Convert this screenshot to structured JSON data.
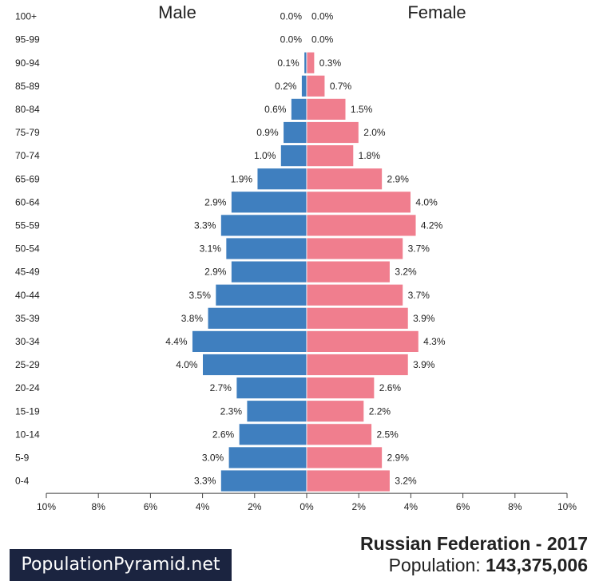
{
  "chart_data": {
    "type": "bar",
    "orientation": "horizontal-pyramid",
    "categories": [
      "100+",
      "95-99",
      "90-94",
      "85-89",
      "80-84",
      "75-79",
      "70-74",
      "65-69",
      "60-64",
      "55-59",
      "50-54",
      "45-49",
      "40-44",
      "35-39",
      "30-34",
      "25-29",
      "20-24",
      "15-19",
      "10-14",
      "5-9",
      "0-4"
    ],
    "series": [
      {
        "name": "Male",
        "color": "#3f7fbf",
        "values": [
          0.0,
          0.0,
          0.1,
          0.2,
          0.6,
          0.9,
          1.0,
          1.9,
          2.9,
          3.3,
          3.1,
          2.9,
          3.5,
          3.8,
          4.4,
          4.0,
          2.7,
          2.3,
          2.6,
          3.0,
          3.3
        ]
      },
      {
        "name": "Female",
        "color": "#f07e8e",
        "values": [
          0.0,
          0.0,
          0.3,
          0.7,
          1.5,
          2.0,
          1.8,
          2.9,
          4.0,
          4.2,
          3.7,
          3.2,
          3.7,
          3.9,
          4.3,
          3.9,
          2.6,
          2.2,
          2.5,
          2.9,
          3.2
        ]
      }
    ],
    "xlim": [
      -10,
      10
    ],
    "xticks": [
      "10%",
      "8%",
      "6%",
      "4%",
      "2%",
      "0%",
      "2%",
      "4%",
      "6%",
      "8%",
      "10%"
    ],
    "grid": false
  },
  "brand": {
    "logo_text": "PopulationPyramid.net",
    "bg_color": "#1b2440"
  },
  "footer": {
    "country_year": "Russian Federation - 2017",
    "population_label": "Population:",
    "population_value": "143,375,006"
  }
}
